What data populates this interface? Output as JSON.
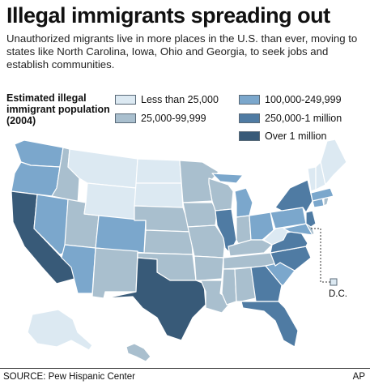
{
  "title": "Illegal immigrants spreading out",
  "subtitle": "Unauthorized migrants live in more places in the U.S. than ever, moving to states like North Carolina, Iowa, Ohio and Georgia, to seek jobs and establish communities.",
  "legend": {
    "title": "Estimated illegal immigrant population (2004)",
    "items": [
      {
        "label": "Less than 25,000",
        "color": "#dce9f2"
      },
      {
        "label": "25,000-99,999",
        "color": "#a9bfce"
      },
      {
        "label": "100,000-249,999",
        "color": "#7ba7cc"
      },
      {
        "label": "250,000-1 million",
        "color": "#4f7ba3"
      },
      {
        "label": "Over 1 million",
        "color": "#385a78"
      }
    ]
  },
  "dc_label": "D.C.",
  "source": "SOURCE: Pew Hispanic Center",
  "credit": "AP"
}
